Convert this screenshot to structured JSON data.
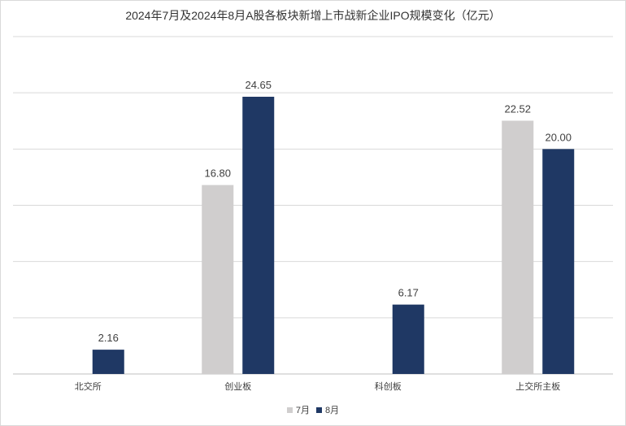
{
  "chart_data": {
    "type": "bar",
    "title": "2024年7月及2024年8月A股各板块新增上市战新企业IPO规模变化（亿元）",
    "categories": [
      "北交所",
      "创业板",
      "科创板",
      "上交所主板"
    ],
    "series": [
      {
        "name": "7月",
        "values": [
          null,
          16.8,
          null,
          22.52
        ],
        "labels": [
          "",
          "16.80",
          "",
          "22.52"
        ],
        "color": "#d0cece"
      },
      {
        "name": "8月",
        "values": [
          2.16,
          24.65,
          6.17,
          20.0
        ],
        "labels": [
          "2.16",
          "24.65",
          "6.17",
          "20.00"
        ],
        "color": "#1f3864"
      }
    ],
    "ylim": [
      0,
      30
    ],
    "y_gridlines": [
      5,
      10,
      15,
      20,
      25,
      30
    ],
    "grid": true,
    "legend_position": "bottom"
  }
}
